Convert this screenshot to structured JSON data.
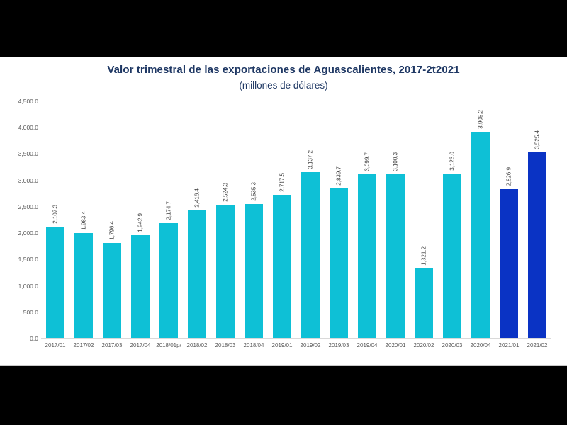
{
  "frame": {
    "letterbox_color": "#000000",
    "content_background": "#ffffff"
  },
  "chart_data": {
    "type": "bar",
    "title": "Valor trimestral de las exportaciones de Aguascalientes, 2017-2t2021",
    "subtitle": "(millones de dólares)",
    "categories": [
      "2017/01",
      "2017/02",
      "2017/03",
      "2017/04",
      "2018/01p/",
      "2018/02",
      "2018/03",
      "2018/04",
      "2019/01",
      "2019/02",
      "2019/03",
      "2019/04",
      "2020/01",
      "2020/02",
      "2020/03",
      "2020/04",
      "2021/01",
      "2021/02"
    ],
    "values": [
      2107.3,
      1983.4,
      1796.4,
      1942.9,
      2174.7,
      2416.4,
      2524.3,
      2535.3,
      2717.5,
      3137.2,
      2839.7,
      3099.7,
      3100.3,
      1321.2,
      3123.0,
      3905.2,
      2826.9,
      3525.4
    ],
    "value_labels": [
      "2,107.3",
      "1,983.4",
      "1,796.4",
      "1,942.9",
      "2,174.7",
      "2,416.4",
      "2,524.3",
      "2,535.3",
      "2,717.5",
      "3,137.2",
      "2,839.7",
      "3,099.7",
      "3,100.3",
      "1,321.2",
      "3,123.0",
      "3,905.2",
      "2,826.9",
      "3,525.4"
    ],
    "highlight_indices": [
      16,
      17
    ],
    "ylim": [
      0,
      4500
    ],
    "ytick_step": 500,
    "yticks": [
      {
        "value": 0,
        "label": "0.0"
      },
      {
        "value": 500,
        "label": "500.0"
      },
      {
        "value": 1000,
        "label": "1,000.0"
      },
      {
        "value": 1500,
        "label": "1,500.0"
      },
      {
        "value": 2000,
        "label": "2,000.0"
      },
      {
        "value": 2500,
        "label": "2,500.0"
      },
      {
        "value": 3000,
        "label": "3,000.0"
      },
      {
        "value": 3500,
        "label": "3,500.0"
      },
      {
        "value": 4000,
        "label": "4,000.0"
      },
      {
        "value": 4500,
        "label": "4,500.0"
      }
    ],
    "grid": false,
    "legend": null,
    "colors": {
      "bar": "#0EC0D6",
      "bar_highlight": "#0A33C4",
      "title_text": "#1F3864",
      "axis_text": "#595959",
      "value_label_text": "#404040",
      "baseline": "#D9D9D9"
    }
  }
}
